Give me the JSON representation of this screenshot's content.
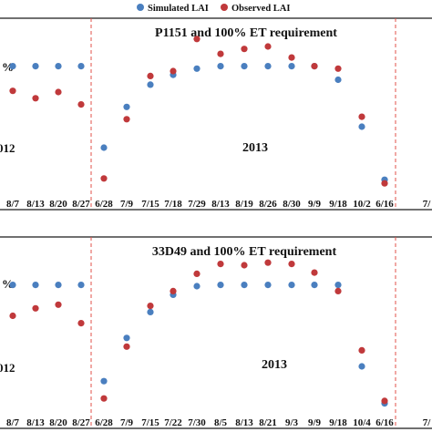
{
  "legend": {
    "simulated_label": "Simulated LAI",
    "observed_label": "Observed LAI",
    "simulated_color": "#4a7fbf",
    "observed_color": "#c0393b"
  },
  "separator_color": "#e2504a",
  "chart_data": [
    {
      "type": "scatter",
      "title": "P1151 and 100% ET requirement",
      "edge_labels": [
        "%",
        "012"
      ],
      "year_label": "2013",
      "categories": [
        "8/7",
        "8/13",
        "8/20",
        "8/27",
        "6/28",
        "7/9",
        "7/15",
        "7/18",
        "7/29",
        "8/13",
        "8/19",
        "8/26",
        "8/30",
        "9/9",
        "9/18",
        "10/2",
        "6/16",
        "7/"
      ],
      "series": [
        {
          "name": "Simulated LAI",
          "values": [
            5.0,
            5.0,
            5.0,
            5.0,
            1.7,
            3.35,
            4.25,
            4.65,
            4.9,
            5.0,
            5.0,
            5.0,
            5.0,
            5.0,
            4.45,
            2.55,
            0.4,
            null
          ]
        },
        {
          "name": "Observed LAI",
          "values": [
            4.0,
            3.7,
            3.95,
            3.45,
            0.45,
            2.85,
            4.6,
            4.8,
            6.1,
            5.5,
            5.7,
            5.8,
            5.35,
            5.0,
            4.9,
            2.95,
            0.25,
            null
          ]
        }
      ],
      "ylim": [
        0,
        6.5
      ],
      "grid": false
    },
    {
      "type": "scatter",
      "title": "33D49 and 100% ET requirement",
      "edge_labels": [
        "%",
        "012"
      ],
      "year_label": "2013",
      "categories": [
        "8/7",
        "8/13",
        "8/20",
        "8/27",
        "6/28",
        "7/9",
        "7/15",
        "7/22",
        "7/30",
        "8/5",
        "8/13",
        "8/21",
        "9/3",
        "9/9",
        "9/18",
        "10/4",
        "6/16",
        "7/"
      ],
      "series": [
        {
          "name": "Simulated LAI",
          "values": [
            5.0,
            5.0,
            5.0,
            5.0,
            1.1,
            2.85,
            3.9,
            4.6,
            4.95,
            5.0,
            5.0,
            5.0,
            5.0,
            5.0,
            5.0,
            1.7,
            0.2,
            null
          ]
        },
        {
          "name": "Observed LAI",
          "values": [
            3.75,
            4.05,
            4.2,
            3.45,
            0.4,
            2.5,
            4.15,
            4.75,
            5.45,
            5.85,
            5.8,
            5.9,
            5.85,
            5.5,
            4.75,
            2.35,
            0.3,
            null
          ]
        }
      ],
      "ylim": [
        0,
        6.5
      ],
      "grid": false
    }
  ]
}
